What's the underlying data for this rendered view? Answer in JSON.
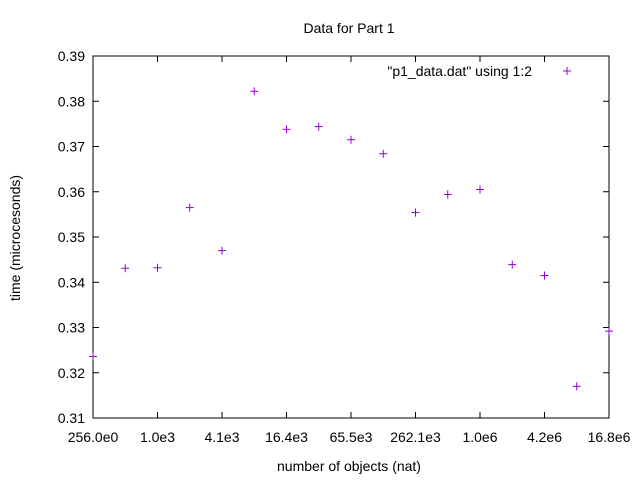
{
  "chart_data": {
    "type": "scatter",
    "title": "Data for Part 1",
    "xlabel": "number of objects (nat)",
    "ylabel": "time (microcesonds)",
    "x_scale": "log2",
    "xlim": [
      256,
      16777216
    ],
    "ylim": [
      0.31,
      0.39
    ],
    "x_ticks": [
      {
        "value": 256,
        "label": "256.0e0"
      },
      {
        "value": 1024,
        "label": "1.0e3"
      },
      {
        "value": 4096,
        "label": "4.1e3"
      },
      {
        "value": 16384,
        "label": "16.4e3"
      },
      {
        "value": 65536,
        "label": "65.5e3"
      },
      {
        "value": 262144,
        "label": "262.1e3"
      },
      {
        "value": 1048576,
        "label": "1.0e6"
      },
      {
        "value": 4194304,
        "label": "4.2e6"
      },
      {
        "value": 16777216,
        "label": "16.8e6"
      }
    ],
    "y_ticks": [
      {
        "value": 0.31,
        "label": "0.31"
      },
      {
        "value": 0.32,
        "label": "0.32"
      },
      {
        "value": 0.33,
        "label": "0.33"
      },
      {
        "value": 0.34,
        "label": "0.34"
      },
      {
        "value": 0.35,
        "label": "0.35"
      },
      {
        "value": 0.36,
        "label": "0.36"
      },
      {
        "value": 0.37,
        "label": "0.37"
      },
      {
        "value": 0.38,
        "label": "0.38"
      },
      {
        "value": 0.39,
        "label": "0.39"
      }
    ],
    "grid": false,
    "legend_position": "top-right",
    "series": [
      {
        "name": "\"p1_data.dat\" using 1:2",
        "color": "#9400d3",
        "marker": "plus",
        "points": [
          {
            "x": 256,
            "y": 0.3236
          },
          {
            "x": 512,
            "y": 0.3431
          },
          {
            "x": 1024,
            "y": 0.3432
          },
          {
            "x": 2048,
            "y": 0.3565
          },
          {
            "x": 4096,
            "y": 0.347
          },
          {
            "x": 8192,
            "y": 0.3822
          },
          {
            "x": 16384,
            "y": 0.3738
          },
          {
            "x": 32768,
            "y": 0.3744
          },
          {
            "x": 65536,
            "y": 0.3715
          },
          {
            "x": 131072,
            "y": 0.3684
          },
          {
            "x": 262144,
            "y": 0.3554
          },
          {
            "x": 524288,
            "y": 0.3594
          },
          {
            "x": 1048576,
            "y": 0.3605
          },
          {
            "x": 2097152,
            "y": 0.3439
          },
          {
            "x": 4194304,
            "y": 0.3415
          },
          {
            "x": 8388608,
            "y": 0.317
          },
          {
            "x": 16777216,
            "y": 0.3292
          }
        ]
      }
    ]
  }
}
